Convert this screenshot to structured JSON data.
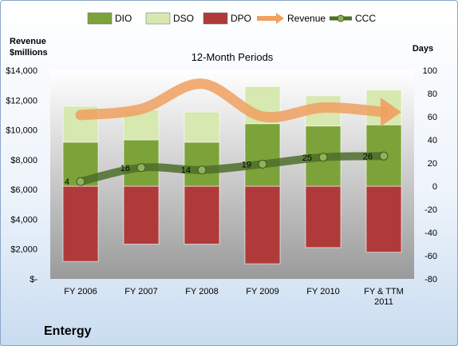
{
  "company": "Entergy",
  "chart_data": {
    "type": "bar",
    "subtitle": "12-Month Periods",
    "left_axis_title": [
      "Revenue",
      "$millions"
    ],
    "right_axis_title": "Days",
    "categories": [
      "FY 2006",
      "FY 2007",
      "FY 2008",
      "FY 2009",
      "FY 2010",
      "FY & TTM 2011"
    ],
    "left_ticks": [
      "$14,000",
      "$12,000",
      "$10,000",
      "$8,000",
      "$6,000",
      "$4,000",
      "$2,000",
      "$-"
    ],
    "right_ticks": [
      "100",
      "80",
      "60",
      "40",
      "20",
      "0",
      "-20",
      "-40",
      "-60",
      "-80"
    ],
    "ylim_left": [
      0,
      14000
    ],
    "ylim_right": [
      -80,
      100
    ],
    "legend": [
      "DIO",
      "DSO",
      "DPO",
      "Revenue",
      "CCC"
    ],
    "legend_position": "top",
    "series": [
      {
        "name": "DPO",
        "color": "#b03a3a",
        "values": [
          -65,
          -50,
          -50,
          -67,
          -53,
          -57
        ]
      },
      {
        "name": "DIO",
        "color": "#7ca33a",
        "values": [
          38,
          40,
          38,
          54,
          52,
          53
        ]
      },
      {
        "name": "DSO",
        "color": "#d7e8b0",
        "values": [
          31,
          26,
          26,
          32,
          26,
          30
        ]
      },
      {
        "name": "Revenue",
        "color": "#f0a060",
        "axis": "left",
        "values": [
          11000,
          11400,
          13100,
          10900,
          11500,
          11200
        ]
      },
      {
        "name": "CCC",
        "color": "#4e6e2a",
        "axis": "right",
        "values": [
          4,
          16,
          14,
          19,
          25,
          26
        ]
      }
    ],
    "ccc_labels": [
      "4",
      "16",
      "14",
      "19",
      "25",
      "26"
    ]
  }
}
